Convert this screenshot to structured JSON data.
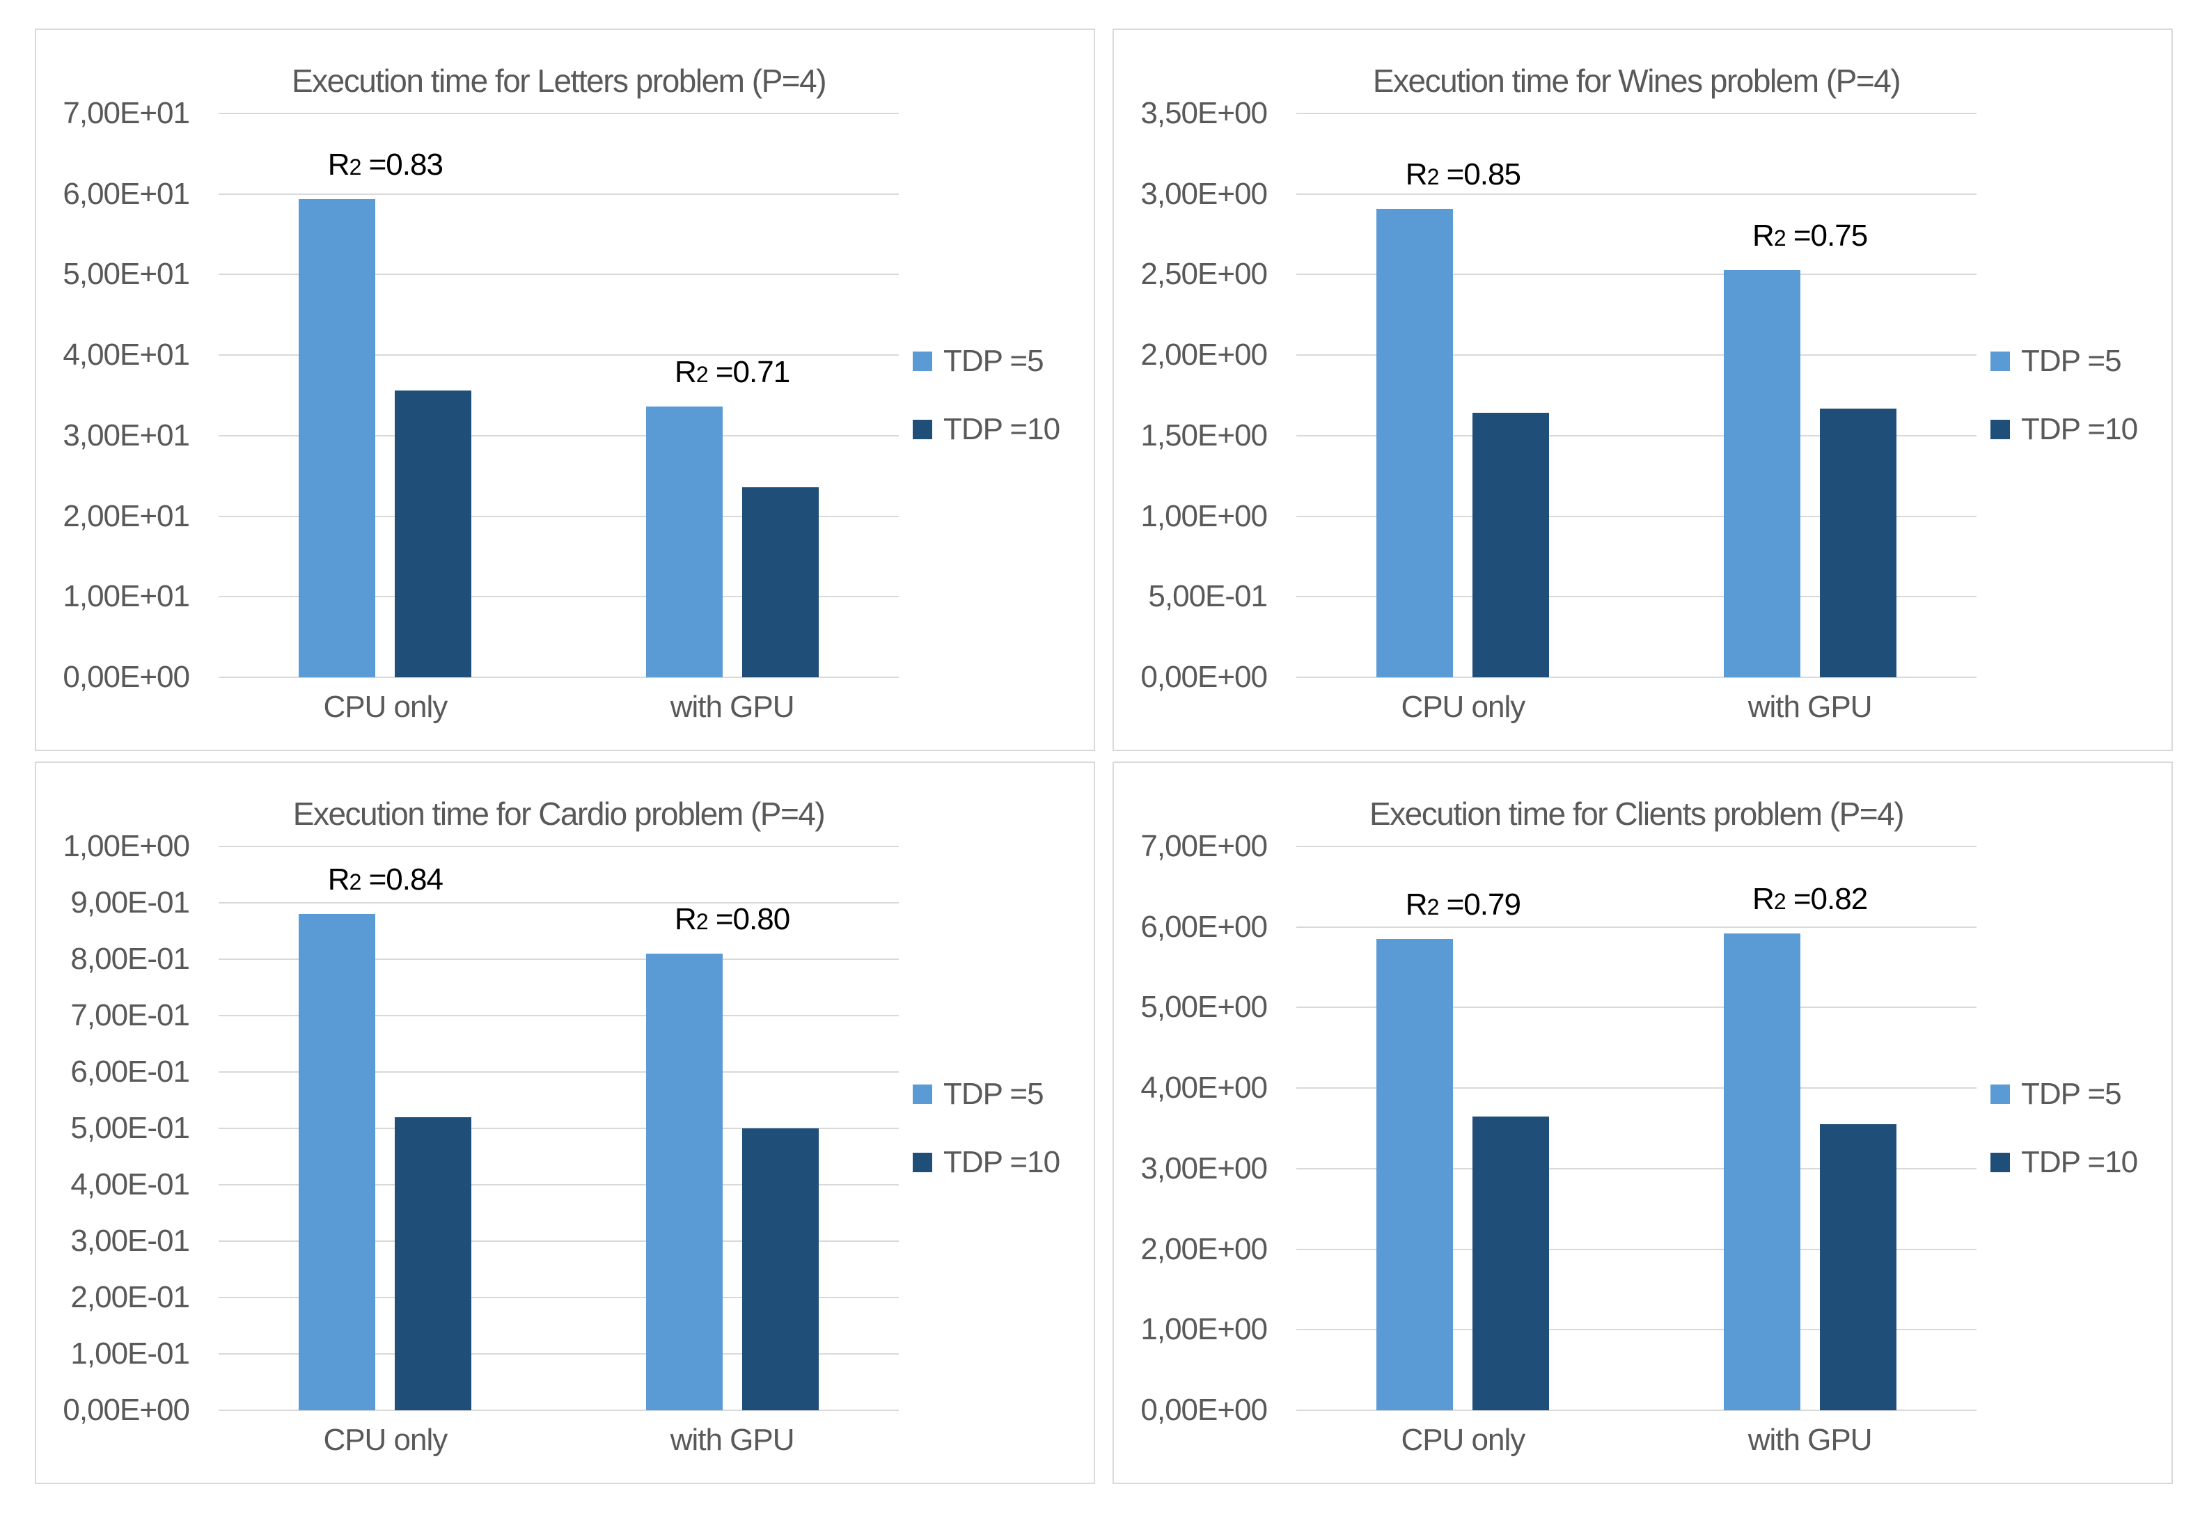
{
  "page": {
    "background": "#FFFFFF",
    "panel_border_color": "#D9D9D9",
    "gridline_color": "#D9D9D9",
    "axis_text_color": "#595959",
    "title_color": "#595959",
    "annotation_color": "#000000"
  },
  "annotation_template": {
    "base": "R",
    "sub": "2",
    "equals": " ="
  },
  "chart_data": [
    {
      "id": "letters",
      "type": "bar",
      "title": "Execution time for Letters problem (P=4)",
      "categories": [
        "CPU only",
        "with GPU"
      ],
      "series": [
        {
          "name": "TDP =5",
          "color": "#5B9BD5",
          "values": [
            59.4,
            33.6
          ]
        },
        {
          "name": "TDP =10",
          "color": "#1F4E79",
          "values": [
            35.6,
            23.6
          ]
        }
      ],
      "r2": [
        "0.83",
        "0.71"
      ],
      "ylim": [
        0,
        70
      ],
      "ytick_labels": [
        "0,00E+00",
        "1,00E+01",
        "2,00E+01",
        "3,00E+01",
        "4,00E+01",
        "5,00E+01",
        "6,00E+01",
        "7,00E+01"
      ],
      "legend": [
        "TDP =5",
        "TDP =10"
      ],
      "legend_position": "right",
      "grid": true,
      "xlabel": "",
      "ylabel": ""
    },
    {
      "id": "wines",
      "type": "bar",
      "title": "Execution time for Wines problem (P=4)",
      "categories": [
        "CPU only",
        "with GPU"
      ],
      "series": [
        {
          "name": "TDP =5",
          "color": "#5B9BD5",
          "values": [
            2.91,
            2.53
          ]
        },
        {
          "name": "TDP =10",
          "color": "#1F4E79",
          "values": [
            1.64,
            1.67
          ]
        }
      ],
      "r2": [
        "0.85",
        "0.75"
      ],
      "ylim": [
        0,
        3.5
      ],
      "ytick_labels": [
        "0,00E+00",
        "5,00E-01",
        "1,00E+00",
        "1,50E+00",
        "2,00E+00",
        "2,50E+00",
        "3,00E+00",
        "3,50E+00"
      ],
      "legend": [
        "TDP =5",
        "TDP =10"
      ],
      "legend_position": "right",
      "grid": true,
      "xlabel": "",
      "ylabel": ""
    },
    {
      "id": "cardio",
      "type": "bar",
      "title": "Execution time for Cardio problem (P=4)",
      "categories": [
        "CPU only",
        "with GPU"
      ],
      "series": [
        {
          "name": "TDP =5",
          "color": "#5B9BD5",
          "values": [
            0.88,
            0.81
          ]
        },
        {
          "name": "TDP =10",
          "color": "#1F4E79",
          "values": [
            0.52,
            0.5
          ]
        }
      ],
      "r2": [
        "0.84",
        "0.80"
      ],
      "ylim": [
        0,
        1
      ],
      "ytick_labels": [
        "0,00E+00",
        "1,00E-01",
        "2,00E-01",
        "3,00E-01",
        "4,00E-01",
        "5,00E-01",
        "6,00E-01",
        "7,00E-01",
        "8,00E-01",
        "9,00E-01",
        "1,00E+00"
      ],
      "legend": [
        "TDP =5",
        "TDP =10"
      ],
      "legend_position": "right",
      "grid": true,
      "xlabel": "",
      "ylabel": ""
    },
    {
      "id": "clients",
      "type": "bar",
      "title": "Execution time for Clients problem (P=4)",
      "categories": [
        "CPU only",
        "with GPU"
      ],
      "series": [
        {
          "name": "TDP =5",
          "color": "#5B9BD5",
          "values": [
            5.85,
            5.92
          ]
        },
        {
          "name": "TDP =10",
          "color": "#1F4E79",
          "values": [
            3.65,
            3.55
          ]
        }
      ],
      "r2": [
        "0.79",
        "0.82"
      ],
      "ylim": [
        0,
        7
      ],
      "ytick_labels": [
        "0,00E+00",
        "1,00E+00",
        "2,00E+00",
        "3,00E+00",
        "4,00E+00",
        "5,00E+00",
        "6,00E+00",
        "7,00E+00"
      ],
      "legend": [
        "TDP =5",
        "TDP =10"
      ],
      "legend_position": "right",
      "grid": true,
      "xlabel": "",
      "ylabel": ""
    }
  ]
}
